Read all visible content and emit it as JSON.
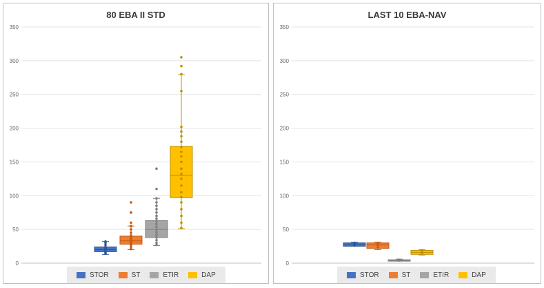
{
  "chart_data": [
    {
      "type": "box",
      "title": "80 EBA II STD",
      "ylim": [
        0,
        350
      ],
      "yticks": [
        0,
        50,
        100,
        150,
        200,
        250,
        300,
        350
      ],
      "grid": true,
      "legend_position": "bottom",
      "series": [
        {
          "name": "STOR",
          "color": "#4472c4",
          "min": 13,
          "q1": 17,
          "median": 20,
          "q3": 24,
          "max": 32,
          "points": [
            14,
            16,
            18,
            20,
            22,
            24,
            27,
            30,
            32
          ]
        },
        {
          "name": "ST",
          "color": "#ed7d31",
          "min": 20,
          "q1": 28,
          "median": 33,
          "q3": 40,
          "max": 55,
          "points": [
            21,
            24,
            27,
            30,
            32,
            35,
            38,
            41,
            45,
            50,
            55,
            60,
            75,
            90
          ]
        },
        {
          "name": "ETIR",
          "color": "#a5a5a5",
          "min": 26,
          "q1": 38,
          "median": 50,
          "q3": 63,
          "max": 96,
          "points": [
            27,
            30,
            34,
            38,
            42,
            46,
            50,
            54,
            58,
            62,
            66,
            70,
            75,
            80,
            85,
            90,
            96,
            110,
            140
          ]
        },
        {
          "name": "DAP",
          "color": "#ffc000",
          "min": 51,
          "q1": 97,
          "median": 130,
          "q3": 173,
          "max": 279,
          "points": [
            52,
            60,
            70,
            80,
            90,
            98,
            105,
            115,
            125,
            132,
            140,
            150,
            158,
            165,
            172,
            180,
            188,
            195,
            202,
            255,
            280,
            292,
            305
          ]
        }
      ]
    },
    {
      "type": "box",
      "title": "LAST 10 EBA-NAV",
      "ylim": [
        0,
        350
      ],
      "yticks": [
        0,
        50,
        100,
        150,
        200,
        250,
        300,
        350
      ],
      "grid": true,
      "legend_position": "bottom",
      "series": [
        {
          "name": "STOR",
          "color": "#4472c4",
          "min": 25,
          "q1": 25,
          "median": 27,
          "q3": 30,
          "max": 31,
          "points": [
            26,
            28,
            30
          ]
        },
        {
          "name": "ST",
          "color": "#ed7d31",
          "min": 20,
          "q1": 22,
          "median": 27,
          "q3": 30,
          "max": 31,
          "points": [
            23,
            27,
            30
          ]
        },
        {
          "name": "ETIR",
          "color": "#a5a5a5",
          "min": 3,
          "q1": 3,
          "median": 4,
          "q3": 5,
          "max": 6,
          "points": [
            4,
            5
          ]
        },
        {
          "name": "DAP",
          "color": "#ffc000",
          "min": 12,
          "q1": 13,
          "median": 16,
          "q3": 19,
          "max": 20,
          "points": [
            14,
            17,
            19
          ]
        }
      ]
    }
  ]
}
